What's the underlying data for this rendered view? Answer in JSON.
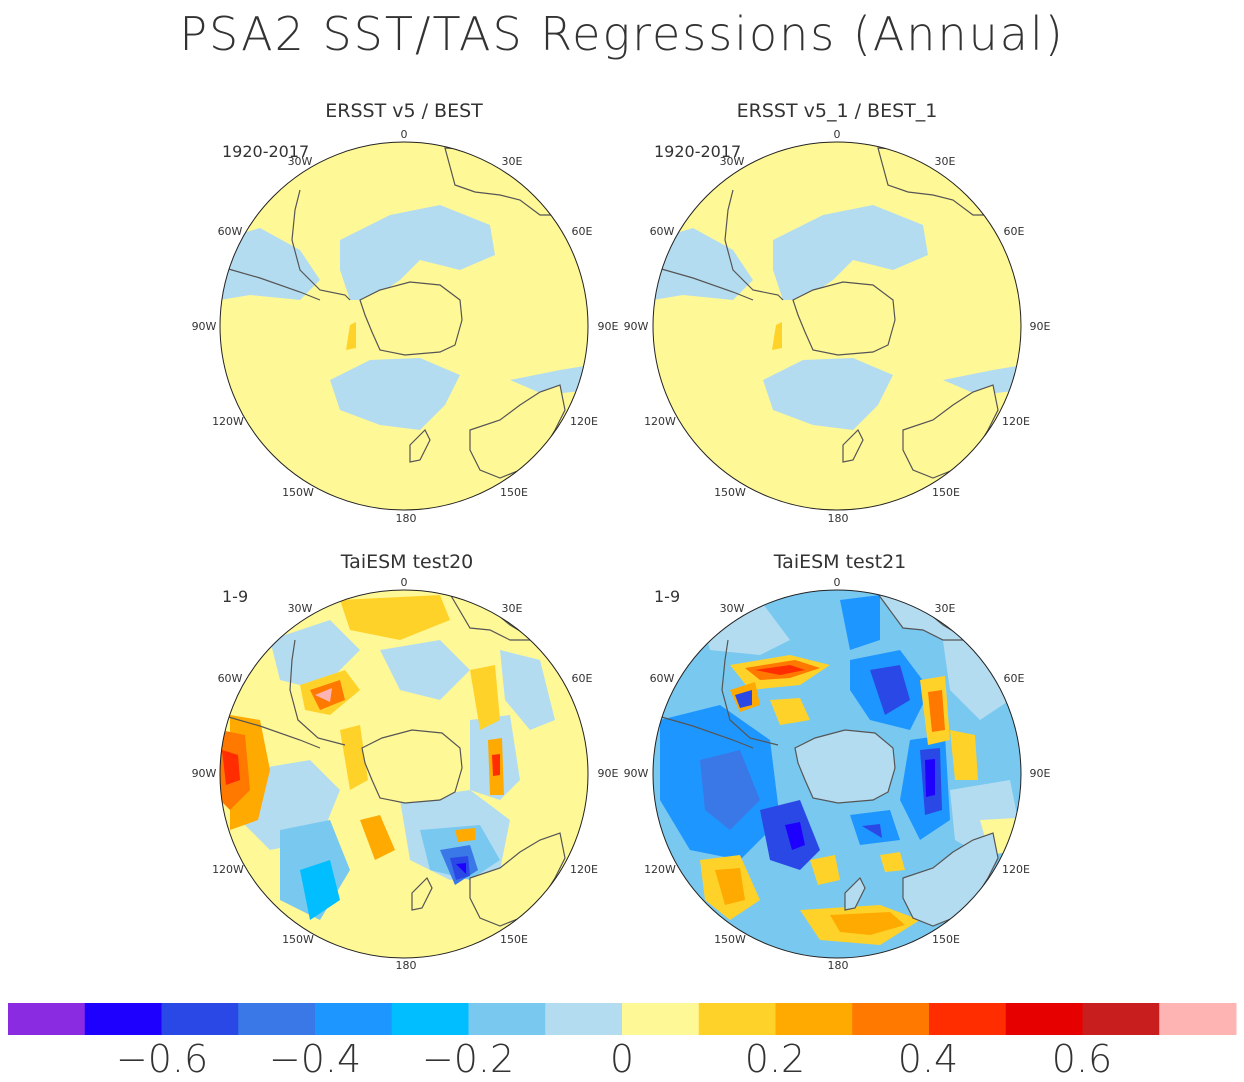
{
  "title": "PSA2 SST/TAS Regressions (Annual)",
  "panels": [
    {
      "title": "ERSST v5 / BEST",
      "period": "1920-2017"
    },
    {
      "title": "ERSST v5_1 / BEST_1",
      "period": "1920-2017"
    },
    {
      "title": "TaiESM test20",
      "period": "1-9"
    },
    {
      "title": "TaiESM test21",
      "period": "1-9"
    }
  ],
  "longitude_labels": [
    "0",
    "30E",
    "60E",
    "90E",
    "120E",
    "150E",
    "180",
    "150W",
    "120W",
    "90W",
    "60W",
    "30W"
  ],
  "colorbar": {
    "colors": [
      "#8a2be2",
      "#1e00ff",
      "#2a48e6",
      "#3a78e8",
      "#1e96ff",
      "#00beff",
      "#78c8f0",
      "#b4dcf0",
      "#fff896",
      "#ffd22a",
      "#ffaa00",
      "#ff7800",
      "#ff2d00",
      "#e60000",
      "#c81e1e",
      "#ffb4b4"
    ],
    "tick_labels": [
      "−0.6",
      "−0.4",
      "−0.2",
      "0",
      "0.2",
      "0.4",
      "0.6"
    ]
  }
}
